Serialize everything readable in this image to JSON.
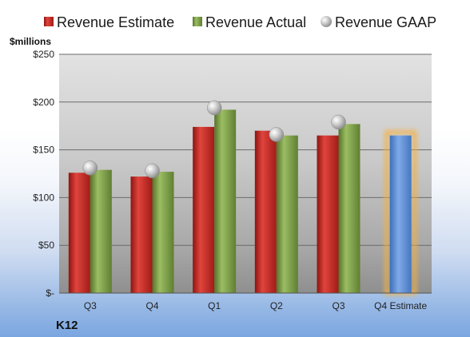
{
  "chart_data": {
    "type": "bar",
    "categories": [
      "Q3",
      "Q4",
      "Q1",
      "Q2",
      "Q3",
      "Q4 Estimate"
    ],
    "series": [
      {
        "name": "Revenue Estimate",
        "kind": "bar",
        "color": "#d0312d",
        "values": [
          126,
          122,
          174,
          170,
          165,
          null
        ]
      },
      {
        "name": "Revenue Actual",
        "kind": "bar",
        "color": "#7fa24a",
        "values": [
          129,
          127,
          192,
          165,
          177,
          null
        ]
      },
      {
        "name": "Revenue GAAP",
        "kind": "marker",
        "color": "#b8b8b8",
        "values": [
          131,
          128,
          194,
          166,
          179,
          null
        ]
      }
    ],
    "estimate_bar": {
      "category": "Q4 Estimate",
      "value": 165,
      "color": "#5b8fd8",
      "highlight": "#f5b041"
    },
    "ylim": [
      0,
      250
    ],
    "y_ticks": [
      {
        "value": 0,
        "label": "$-"
      },
      {
        "value": 50,
        "label": "$50"
      },
      {
        "value": 100,
        "label": "$100"
      },
      {
        "value": 150,
        "label": "$150"
      },
      {
        "value": 200,
        "label": "$200"
      },
      {
        "value": 250,
        "label": "$250"
      }
    ],
    "unit_label": "$millions",
    "company": "K12",
    "legend_position": "top",
    "grid": true
  }
}
